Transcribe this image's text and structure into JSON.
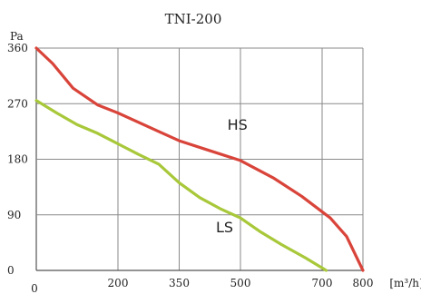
{
  "chart_data": {
    "type": "line",
    "title": "TNI-200",
    "ylabel": "Pa",
    "xlabel": "[m³/h]",
    "xlim": [
      0,
      800
    ],
    "ylim": [
      0,
      360
    ],
    "x_ticks": [
      0,
      200,
      350,
      500,
      700,
      800
    ],
    "y_ticks": [
      0,
      90,
      180,
      270,
      360
    ],
    "grid": true,
    "series": [
      {
        "name": "HS",
        "color": "#d9443a",
        "points": [
          [
            0,
            360
          ],
          [
            40,
            335
          ],
          [
            90,
            295
          ],
          [
            150,
            268
          ],
          [
            200,
            255
          ],
          [
            300,
            225
          ],
          [
            350,
            210
          ],
          [
            420,
            195
          ],
          [
            500,
            178
          ],
          [
            580,
            150
          ],
          [
            650,
            120
          ],
          [
            720,
            85
          ],
          [
            760,
            55
          ],
          [
            800,
            0
          ]
        ]
      },
      {
        "name": "LS",
        "color": "#a8c83a",
        "points": [
          [
            0,
            275
          ],
          [
            50,
            255
          ],
          [
            100,
            236
          ],
          [
            150,
            222
          ],
          [
            200,
            205
          ],
          [
            250,
            188
          ],
          [
            300,
            172
          ],
          [
            350,
            142
          ],
          [
            400,
            118
          ],
          [
            450,
            100
          ],
          [
            500,
            85
          ],
          [
            550,
            62
          ],
          [
            600,
            42
          ],
          [
            660,
            20
          ],
          [
            710,
            0
          ]
        ]
      }
    ]
  }
}
